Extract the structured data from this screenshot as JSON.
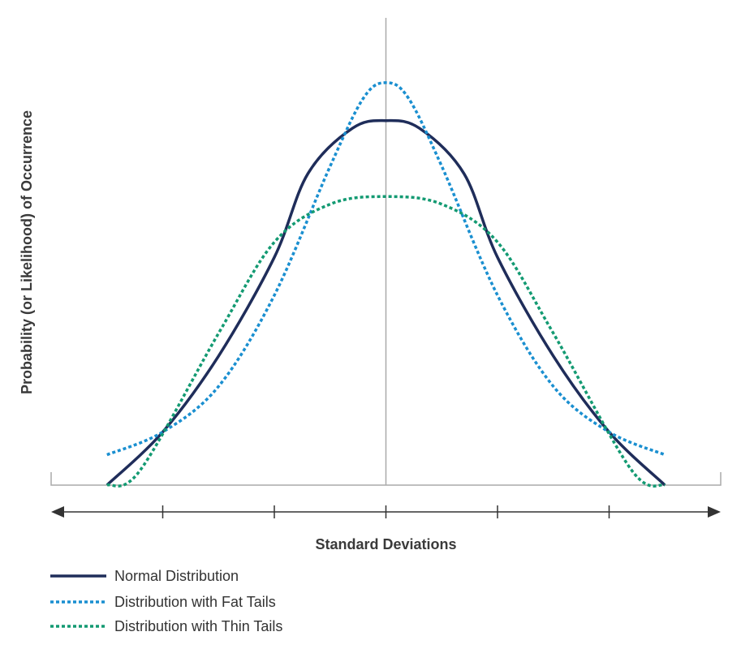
{
  "chart_data": {
    "type": "line",
    "xlabel": "Standard Deviations",
    "ylabel": "Probability (or Likelihood) of Occurrence",
    "xlim": [
      -3,
      3
    ],
    "ylim": [
      0,
      1
    ],
    "x_ticks": [
      -2,
      -1,
      0,
      1,
      2
    ],
    "grid": false,
    "legend_position": "bottom-left",
    "colors": {
      "normal": "#1f2d5a",
      "fat": "#1a8fd0",
      "thin": "#139a72",
      "axis": "#aaaaaa",
      "arrow": "#333333"
    },
    "series": [
      {
        "key": "normal",
        "name": "Normal Distribution",
        "style": "solid",
        "x": [
          -2.5,
          -2.0,
          -1.5,
          -1.0,
          -0.7,
          -0.3,
          0.0,
          0.3,
          0.7,
          1.0,
          1.5,
          2.0,
          2.5
        ],
        "y": [
          0.0,
          0.14,
          0.34,
          0.6,
          0.82,
          0.94,
          0.96,
          0.94,
          0.82,
          0.6,
          0.34,
          0.14,
          0.0
        ]
      },
      {
        "key": "fat",
        "name": "Distribution with Fat Tails",
        "style": "dotted",
        "x": [
          -2.5,
          -2.0,
          -1.5,
          -1.0,
          -0.5,
          -0.2,
          0.0,
          0.2,
          0.5,
          1.0,
          1.5,
          2.0,
          2.5
        ],
        "y": [
          0.08,
          0.14,
          0.26,
          0.5,
          0.84,
          1.02,
          1.06,
          1.02,
          0.84,
          0.5,
          0.26,
          0.14,
          0.08
        ]
      },
      {
        "key": "thin",
        "name": "Distribution with Thin Tails",
        "style": "dotted",
        "x": [
          -2.5,
          -2.2,
          -1.5,
          -1.0,
          -0.5,
          0.0,
          0.5,
          1.0,
          1.5,
          2.2,
          2.5
        ],
        "y": [
          0.0,
          0.04,
          0.4,
          0.64,
          0.74,
          0.76,
          0.74,
          0.64,
          0.4,
          0.04,
          0.0
        ]
      }
    ]
  }
}
